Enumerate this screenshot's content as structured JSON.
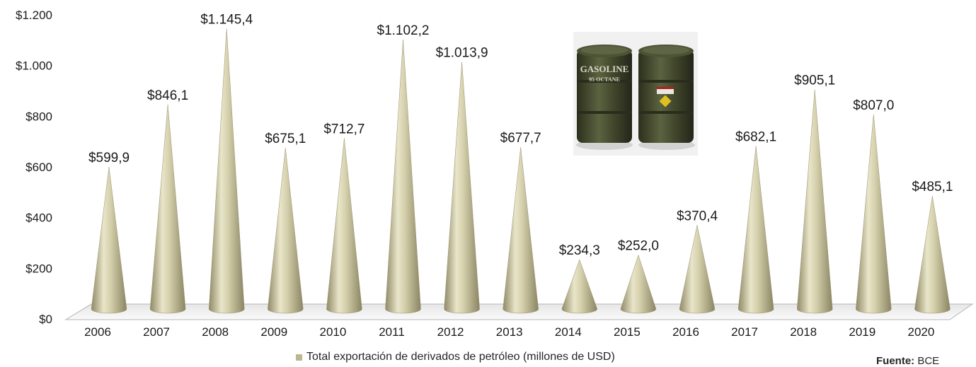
{
  "chart_data": {
    "type": "bar",
    "categories": [
      "2006",
      "2007",
      "2008",
      "2009",
      "2010",
      "2011",
      "2012",
      "2013",
      "2014",
      "2015",
      "2016",
      "2017",
      "2018",
      "2019",
      "2020"
    ],
    "series": [
      {
        "name": "Total exportación de derivados de petróleo (millones de USD)",
        "values": [
          599.9,
          846.1,
          1145.4,
          675.1,
          712.7,
          1102.2,
          1013.9,
          677.7,
          234.3,
          252.0,
          370.4,
          682.1,
          905.1,
          807.0,
          485.1
        ]
      }
    ],
    "data_labels": [
      "$599,9",
      "$846,1",
      "$1.145,4",
      "$675,1",
      "$712,7",
      "$1.102,2",
      "$1.013,9",
      "$677,7",
      "$234,3",
      "$252,0",
      "$370,4",
      "$682,1",
      "$905,1",
      "$807,0",
      "$485,1"
    ],
    "y_ticks": [
      {
        "value": 0,
        "label": "$0"
      },
      {
        "value": 200,
        "label": "$200"
      },
      {
        "value": 400,
        "label": "$400"
      },
      {
        "value": 600,
        "label": "$600"
      },
      {
        "value": 800,
        "label": "$800"
      },
      {
        "value": 1000,
        "label": "$1.000"
      },
      {
        "value": 1200,
        "label": "$1.200"
      }
    ],
    "ylim": [
      0,
      1200
    ],
    "grid": false,
    "legend_position": "bottom",
    "bar_style": "cone",
    "colors": {
      "cone": "#bdb78f",
      "cone_dark": "#8a8462",
      "cone_light": "#efebd2",
      "floor": "#f2f2f2"
    }
  },
  "source": {
    "label": "Fuente:",
    "value": "BCE"
  },
  "image": {
    "name": "gasoline-barrels",
    "barrel_text": [
      "GASOLINE",
      "95 OCTANE"
    ]
  }
}
